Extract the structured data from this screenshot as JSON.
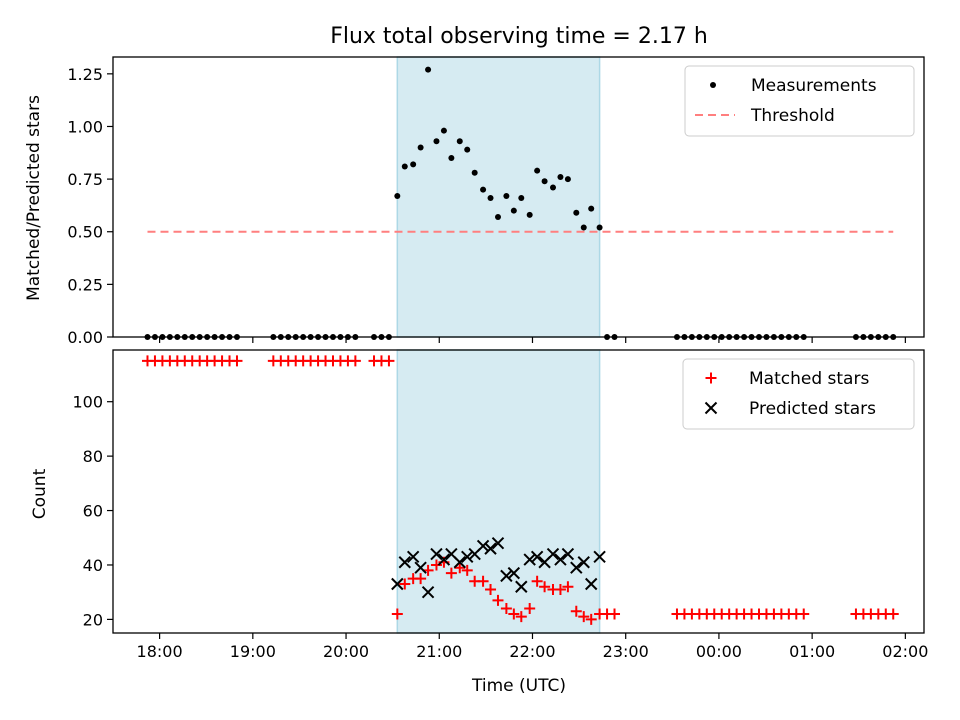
{
  "chart_data": [
    {
      "type": "scatter",
      "title": "Flux total observing time = 2.17 h",
      "xlabel": "",
      "ylabel": "Matched/Predicted stars",
      "x_unit": "hours from 18:00 UTC (x-axis ticks 18:00–02:00)",
      "xlim": [
        -0.5,
        8.2
      ],
      "ylim": [
        0,
        1.33
      ],
      "yticks": [
        "0.00",
        "0.25",
        "0.50",
        "0.75",
        "1.00",
        "1.25"
      ],
      "xticks": [
        "18:00",
        "19:00",
        "20:00",
        "21:00",
        "22:00",
        "23:00",
        "00:00",
        "01:00",
        "02:00"
      ],
      "shaded_span": [
        2.55,
        4.72
      ],
      "legend_position": "upper right",
      "series": [
        {
          "name": "Measurements",
          "marker": "dot",
          "color": "#000000",
          "points": [
            [
              -0.13,
              0
            ],
            [
              -0.05,
              0
            ],
            [
              0.03,
              0
            ],
            [
              0.11,
              0
            ],
            [
              0.19,
              0
            ],
            [
              0.27,
              0
            ],
            [
              0.35,
              0
            ],
            [
              0.43,
              0
            ],
            [
              0.51,
              0
            ],
            [
              0.59,
              0
            ],
            [
              0.67,
              0
            ],
            [
              0.75,
              0
            ],
            [
              0.83,
              0
            ],
            [
              1.22,
              0
            ],
            [
              1.3,
              0
            ],
            [
              1.38,
              0
            ],
            [
              1.46,
              0
            ],
            [
              1.54,
              0
            ],
            [
              1.62,
              0
            ],
            [
              1.7,
              0
            ],
            [
              1.78,
              0
            ],
            [
              1.86,
              0
            ],
            [
              1.94,
              0
            ],
            [
              2.02,
              0
            ],
            [
              2.1,
              0
            ],
            [
              2.3,
              0
            ],
            [
              2.38,
              0
            ],
            [
              2.46,
              0
            ],
            [
              2.55,
              0.67
            ],
            [
              2.63,
              0.81
            ],
            [
              2.72,
              0.82
            ],
            [
              2.8,
              0.9
            ],
            [
              2.88,
              1.27
            ],
            [
              2.97,
              0.93
            ],
            [
              3.05,
              0.98
            ],
            [
              3.13,
              0.85
            ],
            [
              3.22,
              0.93
            ],
            [
              3.3,
              0.89
            ],
            [
              3.38,
              0.78
            ],
            [
              3.47,
              0.7
            ],
            [
              3.55,
              0.66
            ],
            [
              3.63,
              0.57
            ],
            [
              3.72,
              0.67
            ],
            [
              3.8,
              0.6
            ],
            [
              3.88,
              0.66
            ],
            [
              3.97,
              0.58
            ],
            [
              4.05,
              0.79
            ],
            [
              4.13,
              0.74
            ],
            [
              4.22,
              0.71
            ],
            [
              4.3,
              0.76
            ],
            [
              4.38,
              0.75
            ],
            [
              4.47,
              0.59
            ],
            [
              4.55,
              0.52
            ],
            [
              4.63,
              0.61
            ],
            [
              4.72,
              0.52
            ],
            [
              4.8,
              0
            ],
            [
              4.88,
              0
            ],
            [
              5.55,
              0
            ],
            [
              5.63,
              0
            ],
            [
              5.71,
              0
            ],
            [
              5.79,
              0
            ],
            [
              5.87,
              0
            ],
            [
              5.95,
              0
            ],
            [
              6.03,
              0
            ],
            [
              6.11,
              0
            ],
            [
              6.19,
              0
            ],
            [
              6.27,
              0
            ],
            [
              6.35,
              0
            ],
            [
              6.43,
              0
            ],
            [
              6.51,
              0
            ],
            [
              6.59,
              0
            ],
            [
              6.67,
              0
            ],
            [
              6.75,
              0
            ],
            [
              6.83,
              0
            ],
            [
              6.91,
              0
            ],
            [
              7.47,
              0
            ],
            [
              7.55,
              0
            ],
            [
              7.63,
              0
            ],
            [
              7.71,
              0
            ],
            [
              7.79,
              0
            ],
            [
              7.87,
              0
            ]
          ]
        },
        {
          "name": "Threshold",
          "style": "dashed",
          "color": "#ff7f7f",
          "x": [
            -0.13,
            7.87
          ],
          "y": [
            0.5,
            0.5
          ]
        }
      ]
    },
    {
      "type": "scatter",
      "title": "",
      "xlabel": "Time (UTC)",
      "ylabel": "Count",
      "x_unit": "hours from 18:00 UTC (x-axis ticks 18:00–02:00)",
      "xlim": [
        -0.5,
        8.2
      ],
      "ylim": [
        15,
        119
      ],
      "yticks": [
        "20",
        "40",
        "60",
        "80",
        "100"
      ],
      "xticks": [
        "18:00",
        "19:00",
        "20:00",
        "21:00",
        "22:00",
        "23:00",
        "00:00",
        "01:00",
        "02:00"
      ],
      "shaded_span": [
        2.55,
        4.72
      ],
      "legend_position": "upper right",
      "series": [
        {
          "name": "Matched stars",
          "marker": "plus",
          "color": "#ff0000",
          "points": [
            [
              -0.13,
              115
            ],
            [
              -0.05,
              115
            ],
            [
              0.03,
              115
            ],
            [
              0.11,
              115
            ],
            [
              0.19,
              115
            ],
            [
              0.27,
              115
            ],
            [
              0.35,
              115
            ],
            [
              0.43,
              115
            ],
            [
              0.51,
              115
            ],
            [
              0.59,
              115
            ],
            [
              0.67,
              115
            ],
            [
              0.75,
              115
            ],
            [
              0.83,
              115
            ],
            [
              1.22,
              115
            ],
            [
              1.3,
              115
            ],
            [
              1.38,
              115
            ],
            [
              1.46,
              115
            ],
            [
              1.54,
              115
            ],
            [
              1.62,
              115
            ],
            [
              1.7,
              115
            ],
            [
              1.78,
              115
            ],
            [
              1.86,
              115
            ],
            [
              1.94,
              115
            ],
            [
              2.02,
              115
            ],
            [
              2.1,
              115
            ],
            [
              2.3,
              115
            ],
            [
              2.38,
              115
            ],
            [
              2.46,
              115
            ],
            [
              2.55,
              22
            ],
            [
              2.63,
              33
            ],
            [
              2.72,
              35
            ],
            [
              2.8,
              35
            ],
            [
              2.88,
              38
            ],
            [
              2.97,
              40
            ],
            [
              3.05,
              41
            ],
            [
              3.13,
              37
            ],
            [
              3.22,
              39
            ],
            [
              3.3,
              38
            ],
            [
              3.38,
              34
            ],
            [
              3.47,
              34
            ],
            [
              3.55,
              31
            ],
            [
              3.63,
              27
            ],
            [
              3.72,
              24
            ],
            [
              3.8,
              22
            ],
            [
              3.88,
              21
            ],
            [
              3.97,
              24
            ],
            [
              4.05,
              34
            ],
            [
              4.13,
              32
            ],
            [
              4.22,
              31
            ],
            [
              4.3,
              31
            ],
            [
              4.38,
              32
            ],
            [
              4.47,
              23
            ],
            [
              4.55,
              21
            ],
            [
              4.63,
              20
            ],
            [
              4.72,
              22
            ],
            [
              4.8,
              22
            ],
            [
              4.88,
              22
            ],
            [
              5.55,
              22
            ],
            [
              5.63,
              22
            ],
            [
              5.71,
              22
            ],
            [
              5.79,
              22
            ],
            [
              5.87,
              22
            ],
            [
              5.95,
              22
            ],
            [
              6.03,
              22
            ],
            [
              6.11,
              22
            ],
            [
              6.19,
              22
            ],
            [
              6.27,
              22
            ],
            [
              6.35,
              22
            ],
            [
              6.43,
              22
            ],
            [
              6.51,
              22
            ],
            [
              6.59,
              22
            ],
            [
              6.67,
              22
            ],
            [
              6.75,
              22
            ],
            [
              6.83,
              22
            ],
            [
              6.91,
              22
            ],
            [
              7.47,
              22
            ],
            [
              7.55,
              22
            ],
            [
              7.63,
              22
            ],
            [
              7.71,
              22
            ],
            [
              7.79,
              22
            ],
            [
              7.87,
              22
            ]
          ]
        },
        {
          "name": "Predicted stars",
          "marker": "x",
          "color": "#000000",
          "points": [
            [
              2.55,
              33
            ],
            [
              2.63,
              41
            ],
            [
              2.72,
              43
            ],
            [
              2.8,
              39
            ],
            [
              2.88,
              30
            ],
            [
              2.97,
              44
            ],
            [
              3.05,
              42
            ],
            [
              3.13,
              44
            ],
            [
              3.22,
              41
            ],
            [
              3.3,
              43
            ],
            [
              3.38,
              44
            ],
            [
              3.47,
              47
            ],
            [
              3.55,
              46
            ],
            [
              3.63,
              48
            ],
            [
              3.72,
              36
            ],
            [
              3.8,
              37
            ],
            [
              3.88,
              32
            ],
            [
              3.97,
              42
            ],
            [
              4.05,
              43
            ],
            [
              4.13,
              41
            ],
            [
              4.22,
              44
            ],
            [
              4.3,
              42
            ],
            [
              4.38,
              44
            ],
            [
              4.47,
              39
            ],
            [
              4.55,
              41
            ],
            [
              4.63,
              33
            ],
            [
              4.72,
              43
            ]
          ]
        }
      ]
    }
  ]
}
